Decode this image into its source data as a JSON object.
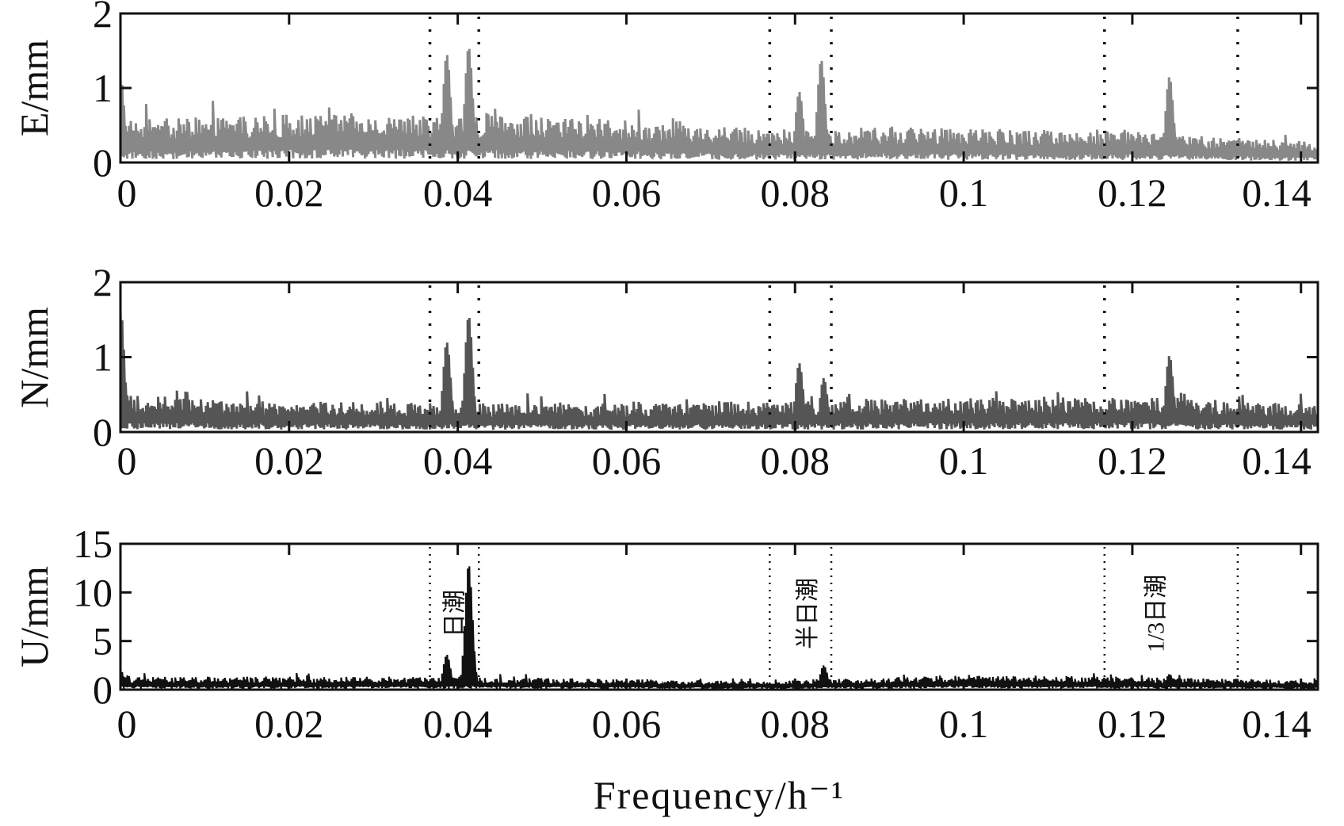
{
  "chart_data": [
    {
      "type": "line",
      "ylabel": "E/mm",
      "xlim": [
        0,
        0.142
      ],
      "ylim": [
        0,
        2
      ],
      "xticks": [
        0,
        0.02,
        0.04,
        0.06,
        0.08,
        0.1,
        0.12,
        0.14
      ],
      "xtick_labels": [
        "0",
        "0.02",
        "0.04",
        "0.06",
        "0.08",
        "0.1",
        "0.12",
        "0.14"
      ],
      "yticks": [
        0,
        1,
        2
      ],
      "ytick_labels": [
        "0",
        "1",
        "2"
      ],
      "series_color": "#888888",
      "baseline": [
        [
          0,
          0.3
        ],
        [
          0.01,
          0.32
        ],
        [
          0.025,
          0.35
        ],
        [
          0.035,
          0.34
        ],
        [
          0.045,
          0.33
        ],
        [
          0.06,
          0.3
        ],
        [
          0.07,
          0.26
        ],
        [
          0.08,
          0.24
        ],
        [
          0.09,
          0.25
        ],
        [
          0.1,
          0.24
        ],
        [
          0.11,
          0.23
        ],
        [
          0.12,
          0.22
        ],
        [
          0.13,
          0.18
        ],
        [
          0.142,
          0.15
        ]
      ],
      "peaks": [
        {
          "x": 0.0,
          "y": 1.15
        },
        {
          "x": 0.0387,
          "y": 1.45
        },
        {
          "x": 0.0413,
          "y": 1.55
        },
        {
          "x": 0.0831,
          "y": 1.38
        },
        {
          "x": 0.0805,
          "y": 0.95
        },
        {
          "x": 0.1244,
          "y": 1.15
        }
      ],
      "marker_lines": [
        0.0367,
        0.0425,
        0.077,
        0.0843,
        0.1167,
        0.1325
      ],
      "annotations": []
    },
    {
      "type": "line",
      "ylabel": "N/mm",
      "xlim": [
        0,
        0.142
      ],
      "ylim": [
        0,
        2
      ],
      "xticks": [
        0,
        0.02,
        0.04,
        0.06,
        0.08,
        0.1,
        0.12,
        0.14
      ],
      "xtick_labels": [
        "0",
        "0.02",
        "0.04",
        "0.06",
        "0.08",
        "0.1",
        "0.12",
        "0.14"
      ],
      "yticks": [
        0,
        1,
        2
      ],
      "ytick_labels": [
        "0",
        "1",
        "2"
      ],
      "series_color": "#555555",
      "baseline": [
        [
          0,
          0.26
        ],
        [
          0.02,
          0.22
        ],
        [
          0.04,
          0.2
        ],
        [
          0.06,
          0.2
        ],
        [
          0.08,
          0.22
        ],
        [
          0.1,
          0.24
        ],
        [
          0.12,
          0.25
        ],
        [
          0.142,
          0.2
        ]
      ],
      "peaks": [
        {
          "x": 0.0,
          "y": 1.65
        },
        {
          "x": 0.0078,
          "y": 0.55
        },
        {
          "x": 0.0387,
          "y": 1.2
        },
        {
          "x": 0.0413,
          "y": 1.55
        },
        {
          "x": 0.0805,
          "y": 0.92
        },
        {
          "x": 0.0834,
          "y": 0.72
        },
        {
          "x": 0.1244,
          "y": 1.02
        }
      ],
      "marker_lines": [
        0.0367,
        0.0425,
        0.077,
        0.0843,
        0.1167,
        0.1325
      ],
      "annotations": []
    },
    {
      "type": "line",
      "ylabel": "U/mm",
      "xlabel": "Frequency/h⁻¹",
      "xlim": [
        0,
        0.142
      ],
      "ylim": [
        0,
        15
      ],
      "xticks": [
        0,
        0.02,
        0.04,
        0.06,
        0.08,
        0.1,
        0.12,
        0.14
      ],
      "xtick_labels": [
        "0",
        "0.02",
        "0.04",
        "0.06",
        "0.08",
        "0.1",
        "0.12",
        "0.14"
      ],
      "yticks": [
        0,
        5,
        10,
        15
      ],
      "ytick_labels": [
        "0",
        "5",
        "10",
        "15"
      ],
      "series_color": "#111111",
      "baseline": [
        [
          0,
          0.7
        ],
        [
          0.04,
          0.7
        ],
        [
          0.07,
          0.5
        ],
        [
          0.08,
          0.5
        ],
        [
          0.1,
          0.8
        ],
        [
          0.12,
          0.7
        ],
        [
          0.142,
          0.5
        ]
      ],
      "peaks": [
        {
          "x": 0.0,
          "y": 2.0
        },
        {
          "x": 0.0387,
          "y": 3.6
        },
        {
          "x": 0.0413,
          "y": 12.9
        },
        {
          "x": 0.0834,
          "y": 2.5
        },
        {
          "x": 0.1244,
          "y": 1.6
        }
      ],
      "marker_lines": [
        0.0367,
        0.0425,
        0.077,
        0.0843,
        0.1167,
        0.1325
      ],
      "annotations": [
        {
          "text": "日潮",
          "x": 0.0396
        },
        {
          "text": "半日潮",
          "x": 0.0815
        },
        {
          "text": "1/3日潮",
          "x": 0.1228
        }
      ]
    }
  ]
}
